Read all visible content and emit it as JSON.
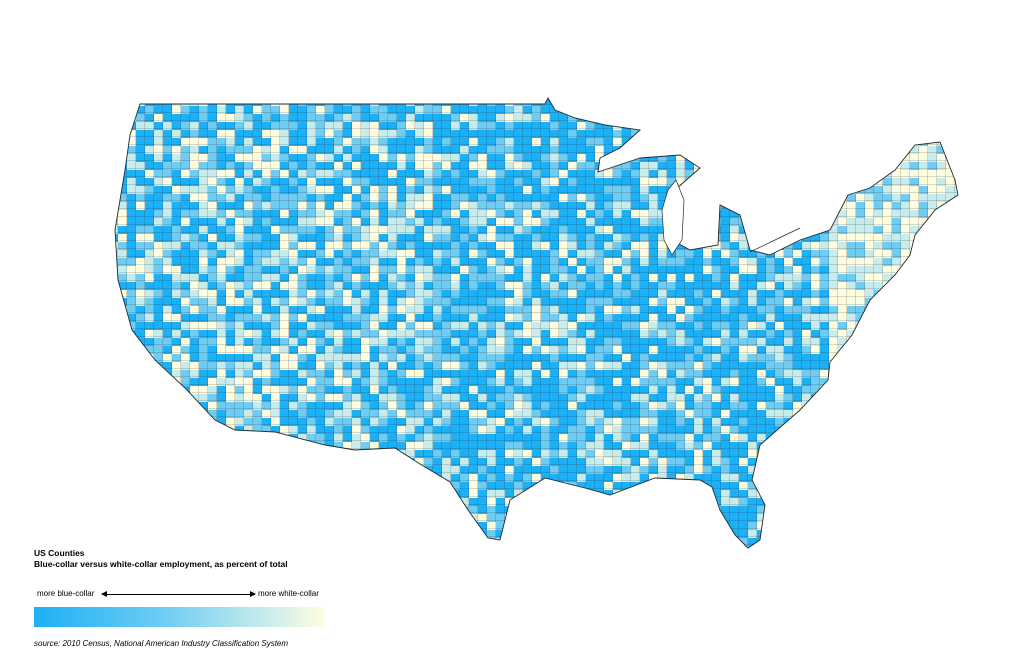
{
  "legend": {
    "title": "US Counties",
    "subtitle": "Blue-collar versus white-collar employment, as percent of total",
    "low_label": "more blue-collar",
    "high_label": "more white-collar",
    "source": "source: 2010 Census, National American Industry Classification System"
  },
  "colors": {
    "blue_collar": "#1cb0f6",
    "white_collar": "#fffde0",
    "mid_blue": "#6fcdf3",
    "light_teal": "#c8ecec",
    "border": "#1f2a33",
    "background": "#ffffff"
  }
}
